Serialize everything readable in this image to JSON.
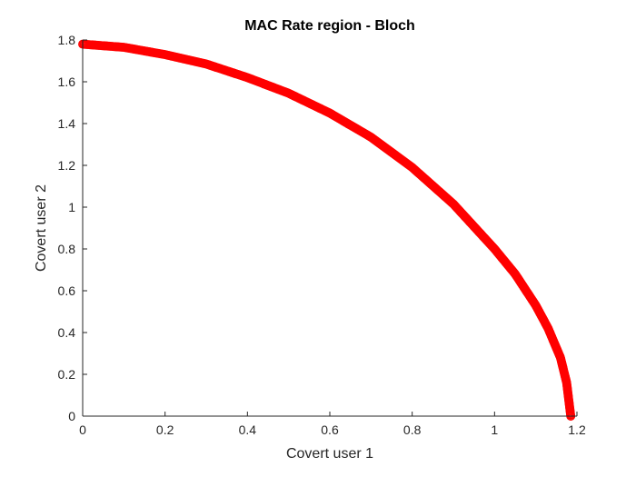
{
  "chart_data": {
    "type": "scatter",
    "title": "MAC Rate region - Bloch",
    "xlabel": "Covert user 1",
    "ylabel": "Covert user 2",
    "xlim": [
      0,
      1.2
    ],
    "ylim": [
      0,
      1.8
    ],
    "xticks": [
      "0",
      "0.2",
      "0.4",
      "0.6",
      "0.8",
      "1",
      "1.2"
    ],
    "yticks": [
      "0",
      "0.2",
      "0.4",
      "0.6",
      "0.8",
      "1",
      "1.2",
      "1.4",
      "1.6",
      "1.8"
    ],
    "grid": false,
    "legend": "none",
    "marker": "circle",
    "marker_color": "#ff0000",
    "series": [
      {
        "x": [
          0,
          0.1,
          0.2,
          0.3,
          0.4,
          0.5,
          0.6,
          0.7,
          0.8,
          0.9,
          1.0,
          1.05,
          1.1,
          1.13,
          1.16,
          1.175,
          1.18,
          1.185
        ],
        "y": [
          1.78,
          1.765,
          1.73,
          1.685,
          1.62,
          1.545,
          1.45,
          1.335,
          1.19,
          1.015,
          0.8,
          0.68,
          0.53,
          0.42,
          0.28,
          0.16,
          0.08,
          0
        ]
      }
    ]
  }
}
